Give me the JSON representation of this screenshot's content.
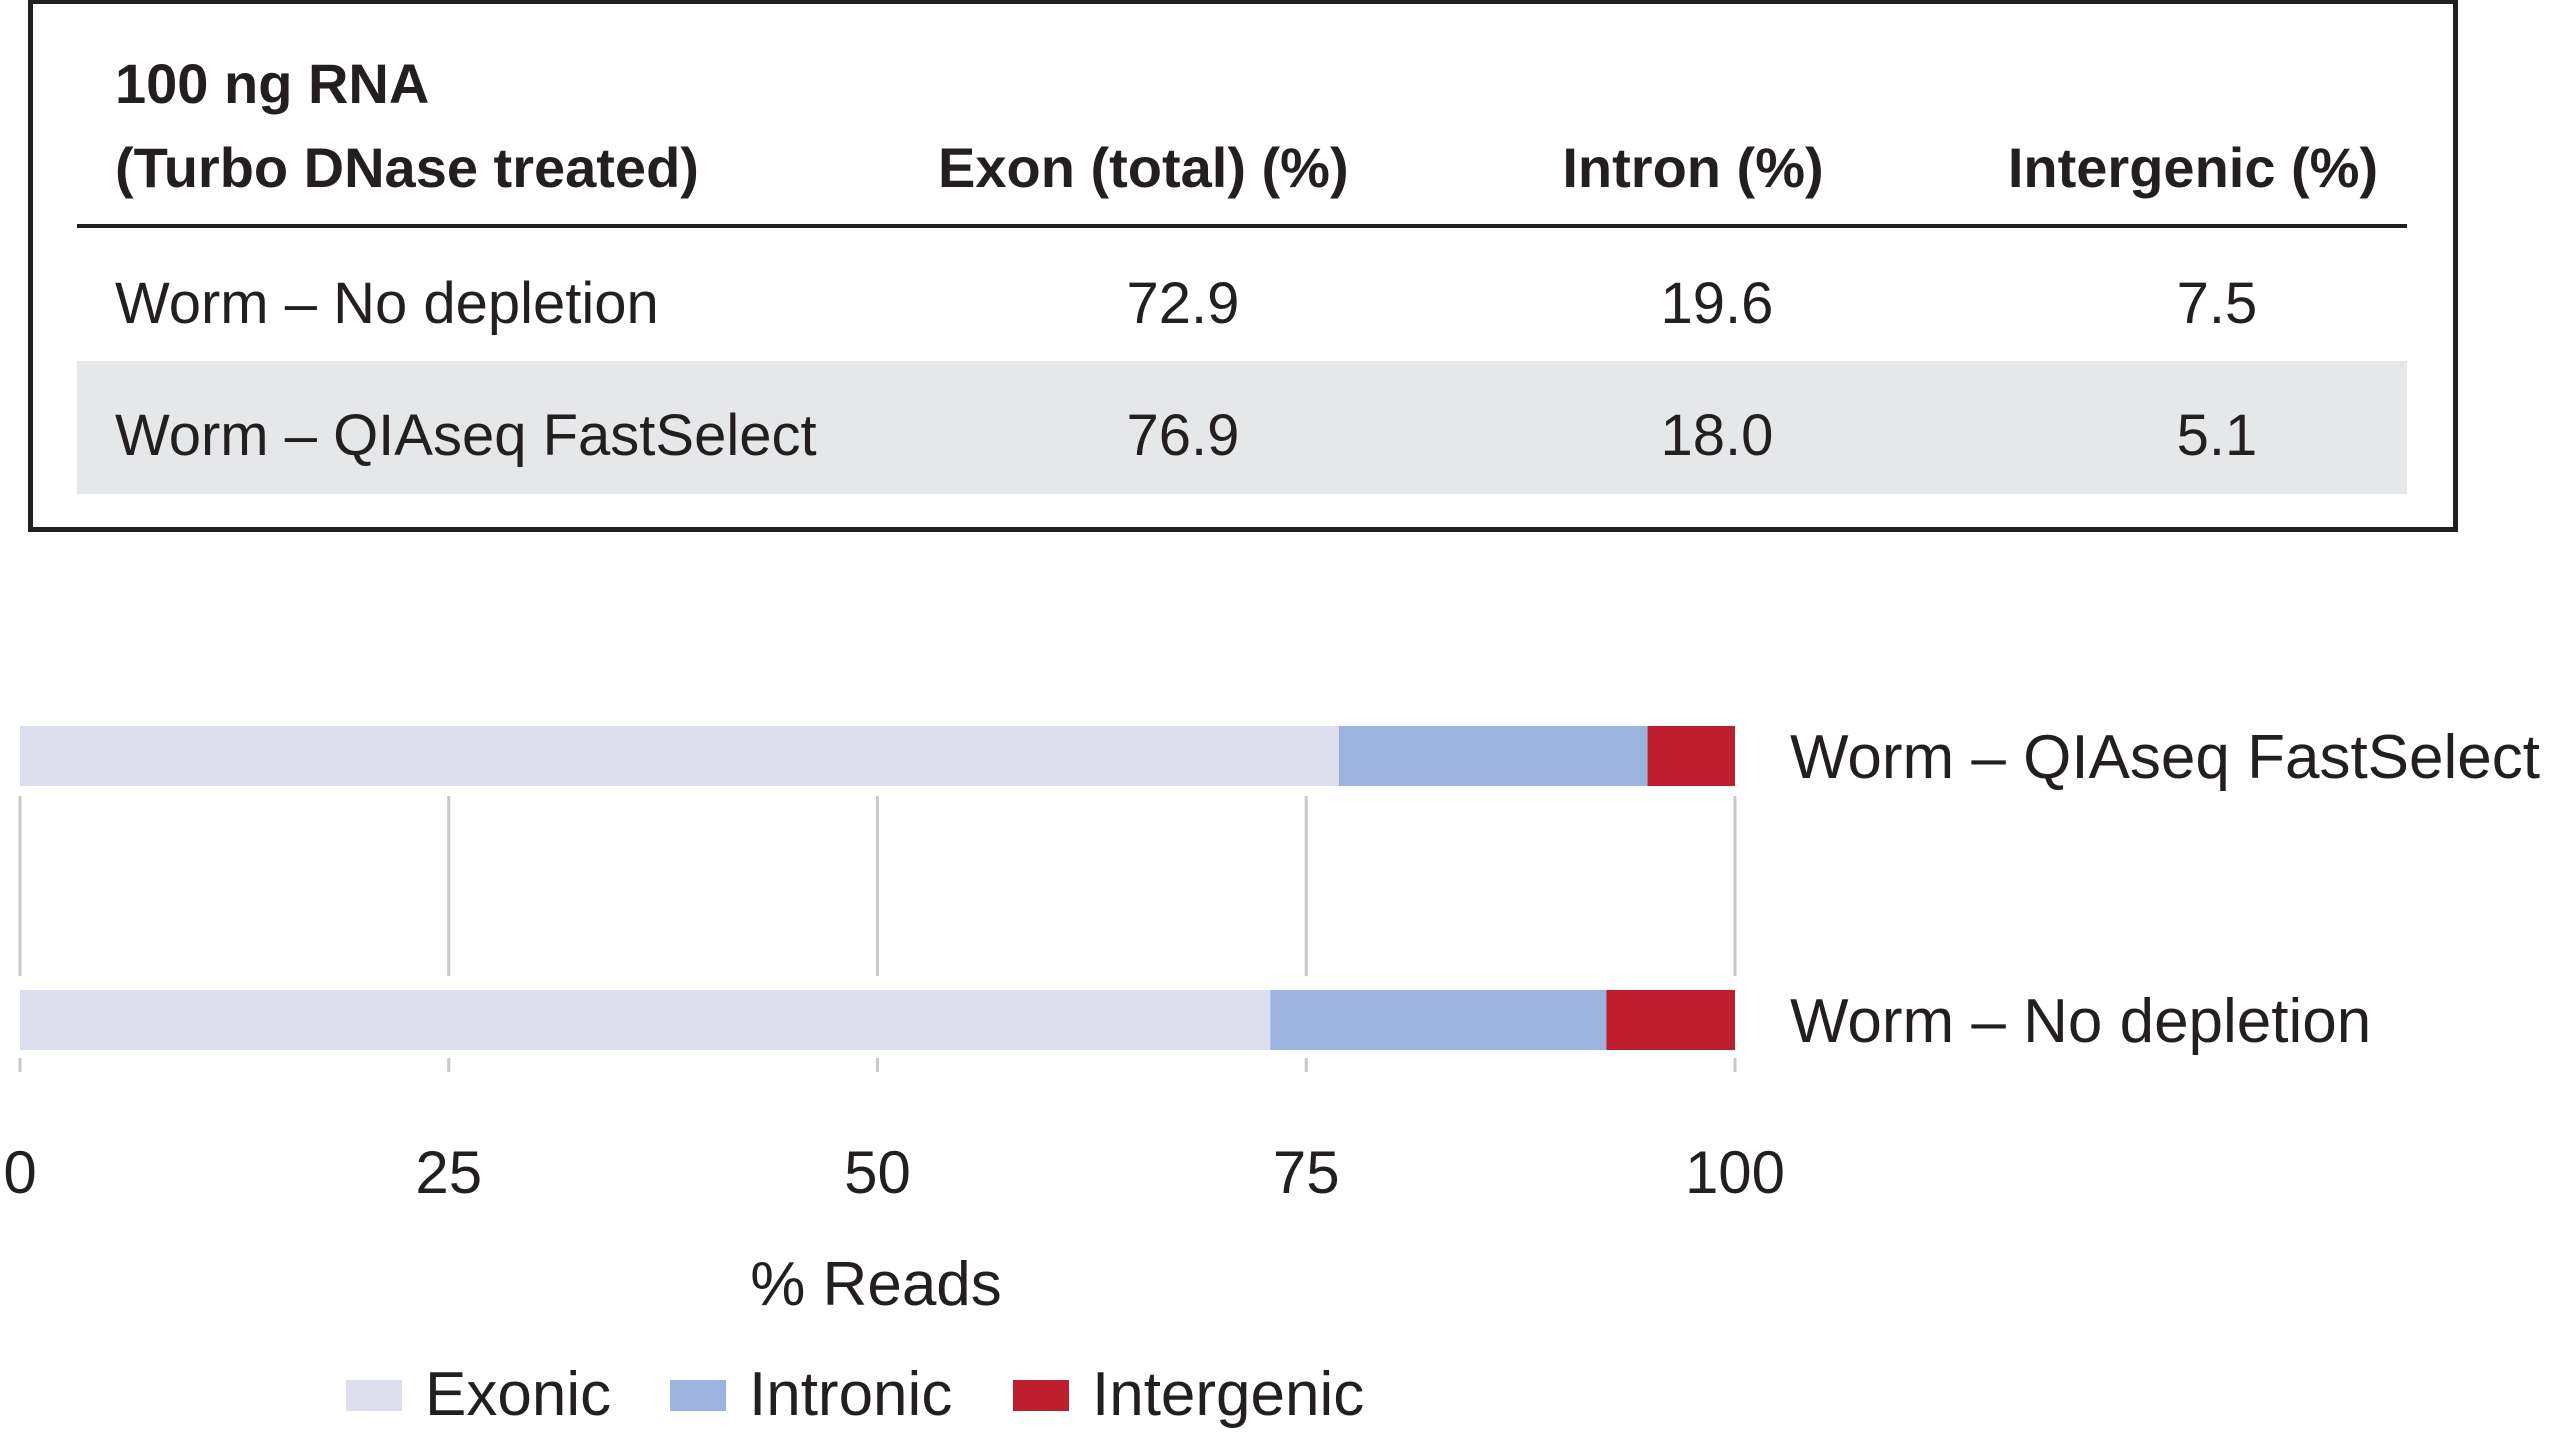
{
  "table": {
    "header": {
      "first_line1": "100 ng RNA",
      "first_line2": "(Turbo DNase treated)",
      "col_exon": "Exon (total) (%)",
      "col_intron": "Intron (%)",
      "col_intergenic": "Intergenic (%)"
    },
    "rows": [
      {
        "label": "Worm – No depletion",
        "exon": "72.9",
        "intron": "19.6",
        "intergenic": "7.5"
      },
      {
        "label": "Worm – QIAseq FastSelect",
        "exon": "76.9",
        "intron": "18.0",
        "intergenic": "5.1"
      }
    ]
  },
  "chart_data": {
    "type": "bar",
    "orientation": "horizontal",
    "stacked": true,
    "categories": [
      "Worm – QIAseq FastSelect",
      "Worm – No depletion"
    ],
    "series": [
      {
        "name": "Exonic",
        "color": "#dcdeed",
        "values": [
          76.9,
          72.9
        ]
      },
      {
        "name": "Intronic",
        "color": "#9cb3e0",
        "values": [
          18.0,
          19.6
        ]
      },
      {
        "name": "Intergenic",
        "color": "#be1e2d",
        "values": [
          5.1,
          7.5
        ]
      }
    ],
    "xlabel": "% Reads",
    "xlim": [
      0,
      100
    ],
    "xticks": [
      0,
      25,
      50,
      75,
      100
    ],
    "grid": true,
    "legend_position": "bottom"
  }
}
